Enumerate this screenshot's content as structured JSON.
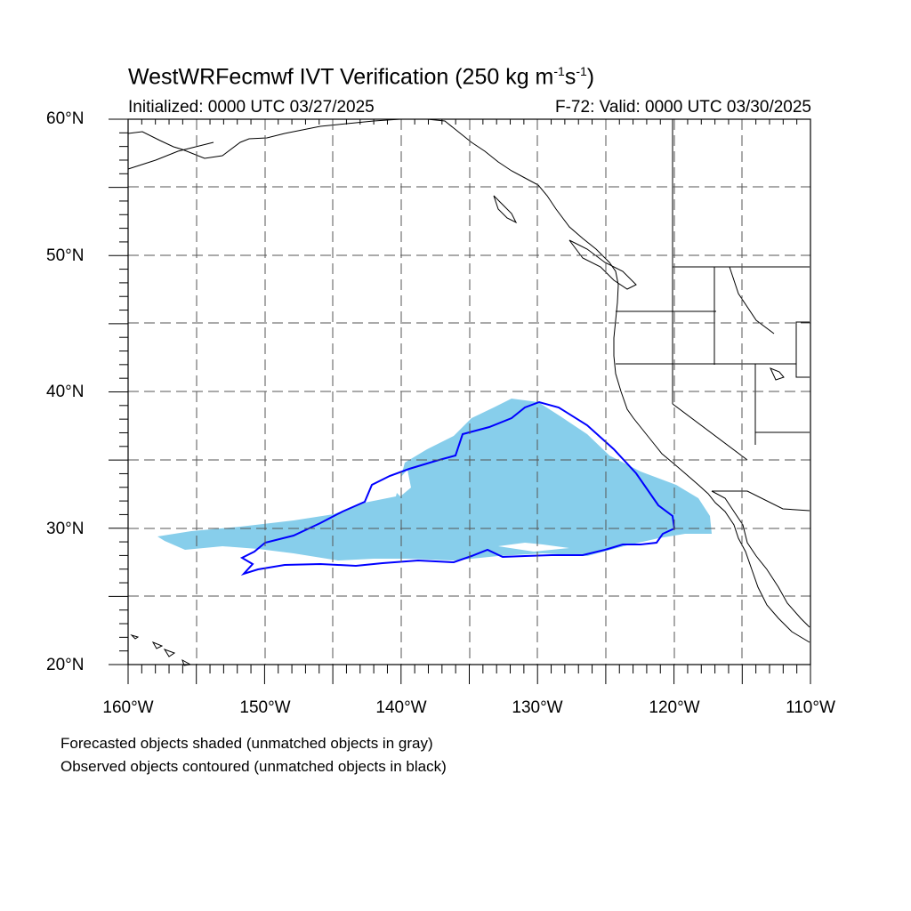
{
  "title": {
    "prefix": "WestWRFecmwf IVT Verification (250 kg m",
    "exp1": "-1",
    "mid": "s",
    "exp2": "-1",
    "suffix": ")"
  },
  "subtitle_left": "Initialized: 0000 UTC 03/27/2025",
  "subtitle_right": "F-72: Valid: 0000 UTC 03/30/2025",
  "lat_labels": [
    "60°N",
    "50°N",
    "40°N",
    "30°N",
    "20°N"
  ],
  "lon_labels": [
    "160°W",
    "150°W",
    "140°W",
    "130°W",
    "120°W",
    "110°W"
  ],
  "legend": {
    "line1": "Forecasted objects shaded (unmatched objects in gray)",
    "line2": "Observed objects contoured (unmatched objects in black)"
  },
  "colors": {
    "forecast_fill": "#87ceeb",
    "observed_contour": "#0000ff",
    "coastline": "#000000",
    "gridline": "#555555"
  },
  "map_extent": {
    "lon": [
      -160,
      -110
    ],
    "lat": [
      20,
      60
    ]
  },
  "gridlines": "dashed every 5 degrees"
}
